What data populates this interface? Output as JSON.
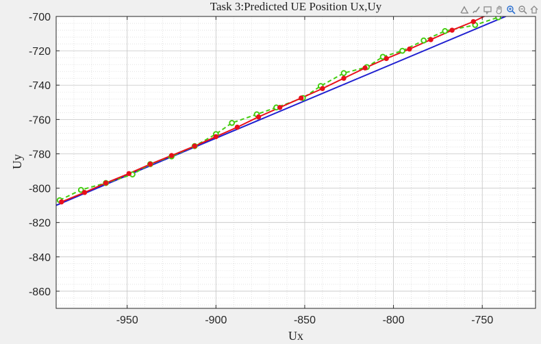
{
  "toolbar": {
    "tools": [
      "export-icon",
      "brush-icon",
      "datatip-icon",
      "pan-icon",
      "zoom-in-icon",
      "zoom-out-icon",
      "home-icon"
    ]
  },
  "chart_data": {
    "type": "line",
    "title": "Task 3:Predicted UE Position Ux,Uy",
    "xlabel": "Ux",
    "ylabel": "Uy",
    "xlim": [
      -990,
      -720
    ],
    "ylim": [
      -870,
      -700
    ],
    "xticks": [
      -950,
      -900,
      -850,
      -800,
      -750
    ],
    "yticks": [
      -700,
      -720,
      -740,
      -760,
      -780,
      -800,
      -820,
      -840,
      -860
    ],
    "grid": true,
    "minor_grid": true,
    "colors": {
      "true_path": "#2020d0",
      "predicted": "#e8101a",
      "measured": "#44cc10",
      "marker_edge_measured": "#88cc00"
    },
    "series": [
      {
        "style": "solid-line",
        "x": [
          -990,
          -730
        ],
        "y": [
          -810,
          -697
        ]
      },
      {
        "style": "solid-line-dot-markers",
        "x": [
          -987,
          -974,
          -962,
          -949,
          -937,
          -925,
          -912,
          -900,
          -888,
          -876,
          -864,
          -852,
          -840,
          -828,
          -816,
          -804,
          -791,
          -779,
          -767,
          -755,
          -745
        ],
        "y": [
          -808,
          -802.5,
          -797,
          -791.5,
          -786,
          -781,
          -775.5,
          -770,
          -764.5,
          -758.5,
          -753,
          -747.5,
          -742,
          -736,
          -730,
          -724.5,
          -719,
          -713.5,
          -708,
          -703,
          -698
        ]
      },
      {
        "style": "dashed-line-circle-markers",
        "x": [
          -988,
          -976,
          -962,
          -947,
          -937,
          -925,
          -912,
          -900,
          -891,
          -877,
          -866,
          -851,
          -841,
          -828,
          -815,
          -806,
          -795,
          -783,
          -771,
          -754,
          -741
        ],
        "y": [
          -807,
          -801,
          -797,
          -792,
          -786,
          -781.5,
          -775.5,
          -768.5,
          -762,
          -757,
          -753,
          -747.5,
          -740.5,
          -733,
          -729.5,
          -723.5,
          -720,
          -714,
          -708.5,
          -705,
          -700.5
        ]
      }
    ]
  }
}
